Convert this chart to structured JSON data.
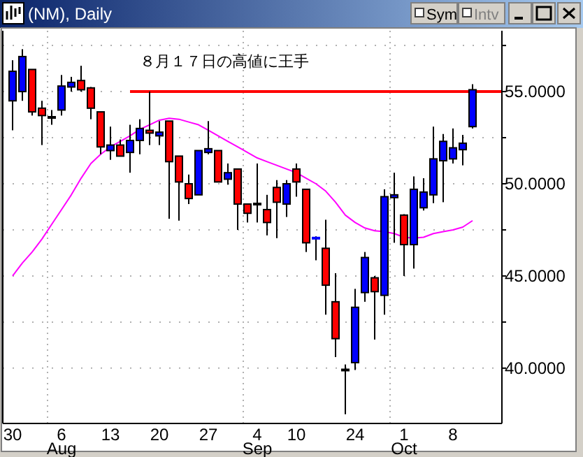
{
  "chart_data": {
    "type": "candlestick",
    "title": "(NM), Daily",
    "categories": [
      "30",
      null,
      null,
      null,
      null,
      "6",
      null,
      null,
      null,
      null,
      "13",
      null,
      null,
      null,
      null,
      "20",
      null,
      null,
      null,
      null,
      "27",
      null,
      null,
      null,
      null,
      "4",
      null,
      null,
      null,
      "10",
      null,
      null,
      null,
      null,
      null,
      "24",
      null,
      null,
      null,
      null,
      "1",
      null,
      null,
      null,
      null,
      "8",
      null,
      null
    ],
    "ohlc": [
      [
        54.5,
        56.7,
        52.9,
        56.1
      ],
      [
        55.0,
        57.3,
        54.5,
        56.9
      ],
      [
        56.2,
        56.2,
        53.7,
        53.9
      ],
      [
        54.1,
        54.5,
        52.1,
        53.7
      ],
      [
        53.6,
        54.0,
        53.2,
        53.6
      ],
      [
        54.0,
        55.9,
        53.7,
        55.3
      ],
      [
        55.25,
        55.8,
        55.0,
        55.5
      ],
      [
        55.6,
        56.4,
        55.0,
        55.1
      ],
      [
        55.2,
        55.25,
        53.5,
        54.1
      ],
      [
        53.9,
        53.9,
        51.6,
        52.0
      ],
      [
        51.8,
        53.1,
        51.3,
        52.1
      ],
      [
        52.1,
        52.4,
        51.5,
        51.5
      ],
      [
        51.7,
        53.2,
        50.6,
        52.35
      ],
      [
        52.35,
        53.5,
        51.6,
        53.0
      ],
      [
        52.9,
        55.0,
        52.1,
        52.75
      ],
      [
        52.6,
        53.4,
        52.1,
        52.8
      ],
      [
        53.4,
        53.4,
        48.1,
        51.2
      ],
      [
        51.5,
        51.5,
        48.0,
        50.1
      ],
      [
        50.0,
        50.5,
        48.9,
        49.2
      ],
      [
        49.4,
        51.8,
        49.4,
        51.8
      ],
      [
        51.7,
        53.4,
        51.6,
        51.9
      ],
      [
        51.8,
        51.8,
        50.1,
        50.1
      ],
      [
        50.25,
        51.1,
        49.95,
        50.6
      ],
      [
        50.8,
        50.8,
        47.5,
        48.9
      ],
      [
        48.9,
        48.9,
        47.9,
        48.4
      ],
      [
        48.9,
        51.1,
        47.9,
        48.9
      ],
      [
        48.6,
        49.4,
        47.2,
        47.9
      ],
      [
        49.8,
        50.2,
        47.05,
        49.0
      ],
      [
        48.9,
        50.2,
        48.2,
        50.0
      ],
      [
        50.8,
        51.1,
        49.3,
        50.1
      ],
      [
        49.7,
        49.7,
        46.3,
        46.8
      ],
      [
        46.95,
        47.15,
        45.85,
        47.05
      ],
      [
        46.5,
        48.05,
        42.9,
        44.5
      ],
      [
        43.6,
        45.15,
        40.6,
        41.6
      ],
      [
        39.9,
        40.2,
        37.5,
        39.9
      ],
      [
        40.3,
        44.3,
        39.9,
        43.3
      ],
      [
        44.1,
        46.3,
        43.6,
        46.0
      ],
      [
        44.9,
        45.0,
        41.55,
        44.15
      ],
      [
        43.95,
        49.7,
        42.9,
        49.3
      ],
      [
        49.25,
        50.6,
        46.8,
        49.4
      ],
      [
        48.3,
        48.35,
        45.0,
        46.7
      ],
      [
        46.7,
        50.4,
        45.4,
        49.7
      ],
      [
        48.7,
        50.3,
        48.55,
        49.55
      ],
      [
        49.4,
        53.1,
        48.95,
        51.35
      ],
      [
        51.25,
        52.7,
        49.0,
        52.3
      ],
      [
        51.35,
        53.0,
        51.1,
        51.95
      ],
      [
        51.85,
        52.65,
        51.0,
        52.2
      ],
      [
        53.1,
        55.4,
        53.0,
        55.1
      ]
    ],
    "colors": [
      "#0000ff",
      "#0000ff",
      "#ff0000",
      "#ff0000",
      "#000000",
      "#0000ff",
      "#0000ff",
      "#ff0000",
      "#ff0000",
      "#ff0000",
      "#0000ff",
      "#ff0000",
      "#0000ff",
      "#0000ff",
      "#ff0000",
      "#0000ff",
      "#ff0000",
      "#ff0000",
      "#ff0000",
      "#0000ff",
      "#0000ff",
      "#ff0000",
      "#0000ff",
      "#ff0000",
      "#ff0000",
      "#000000",
      "#ff0000",
      "#ff0000",
      "#0000ff",
      "#ff0000",
      "#ff0000",
      "#0000ff",
      "#ff0000",
      "#ff0000",
      "#000000",
      "#0000ff",
      "#0000ff",
      "#ff0000",
      "#0000ff",
      "#0000ff",
      "#ff0000",
      "#0000ff",
      "#0000ff",
      "#0000ff",
      "#0000ff",
      "#0000ff",
      "#0000ff",
      "#0000ff"
    ],
    "series": [
      {
        "type": "line",
        "color": "#ff00ff",
        "values": [
          45.0,
          45.7,
          46.3,
          47.0,
          47.8,
          48.6,
          49.4,
          50.3,
          51.1,
          51.6,
          52.0,
          52.3,
          52.6,
          52.95,
          53.2,
          53.45,
          53.55,
          53.5,
          53.35,
          53.2,
          52.9,
          52.6,
          52.3,
          52.0,
          51.7,
          51.4,
          51.2,
          51.0,
          50.8,
          50.6,
          50.3,
          50.0,
          49.6,
          49.0,
          48.3,
          47.9,
          47.6,
          47.45,
          47.4,
          47.3,
          47.1,
          47.05,
          47.1,
          47.3,
          47.4,
          47.5,
          47.65,
          48.0
        ]
      }
    ],
    "ylim": [
      37.0,
      58.3
    ],
    "yticks": [
      {
        "value": 40,
        "label": "40.0000"
      },
      {
        "value": 42.5,
        "label": null
      },
      {
        "value": 45,
        "label": "45.0000"
      },
      {
        "value": 47.5,
        "label": null
      },
      {
        "value": 50,
        "label": "50.0000"
      },
      {
        "value": 52.5,
        "label": null
      },
      {
        "value": 55,
        "label": "55.0000"
      },
      {
        "value": 57.5,
        "label": null
      }
    ],
    "grid": true,
    "ref_lines": [
      {
        "axis": "y",
        "value": 55,
        "color": "#ff0000",
        "label": "８月１７日の高値に王手"
      }
    ],
    "annotations": [
      "Aug",
      "Sep",
      "Oct",
      "Sym",
      "Intv"
    ]
  }
}
